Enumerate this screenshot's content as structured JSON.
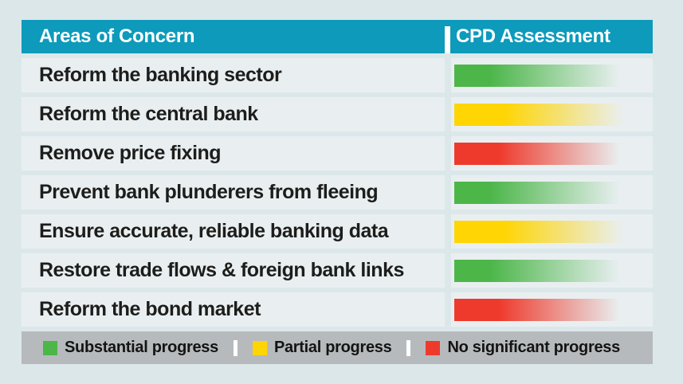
{
  "table": {
    "header": {
      "col1": "Areas of Concern",
      "col2": "CPD Assessment"
    },
    "rows": [
      {
        "label": "Reform the banking sector",
        "status": "substantial",
        "assessment": "Substantial progress"
      },
      {
        "label": "Reform the central bank",
        "status": "partial",
        "assessment": "Partial progress"
      },
      {
        "label": "Remove price fixing",
        "status": "none",
        "assessment": "No significant progress"
      },
      {
        "label": "Prevent bank plunderers from fleeing",
        "status": "substantial",
        "assessment": "Substantial progress"
      },
      {
        "label": "Ensure accurate, reliable banking data",
        "status": "partial",
        "assessment": "Partial progress"
      },
      {
        "label": "Restore trade flows & foreign bank links",
        "status": "substantial",
        "assessment": "Substantial progress"
      },
      {
        "label": "Reform the bond market",
        "status": "none",
        "assessment": "No significant progress"
      }
    ]
  },
  "legend": {
    "items": [
      {
        "label": "Substantial progress",
        "color": "#4cb649"
      },
      {
        "label": "Partial progress",
        "color": "#ffd504"
      },
      {
        "label": "No significant progress",
        "color": "#ee3a2c"
      }
    ]
  },
  "colors": {
    "header_teal": "#0d9abb",
    "row_background": "#e9eff1",
    "page_background": "#dce7ea",
    "legend_background": "#b6babc",
    "green": "#4cb649",
    "yellow": "#ffd504",
    "red": "#ee3a2c"
  },
  "chart_data": {
    "type": "table",
    "title": "",
    "columns": [
      "Areas of Concern",
      "CPD Assessment"
    ],
    "rows": [
      [
        "Reform the banking sector",
        "Substantial progress"
      ],
      [
        "Reform the central bank",
        "Partial progress"
      ],
      [
        "Remove price fixing",
        "No significant progress"
      ],
      [
        "Prevent bank plunderers from fleeing",
        "Substantial progress"
      ],
      [
        "Ensure accurate, reliable banking data",
        "Partial progress"
      ],
      [
        "Restore trade flows & foreign bank links",
        "Substantial progress"
      ],
      [
        "Reform the bond market",
        "No significant progress"
      ]
    ],
    "legend_entries": [
      "Substantial progress",
      "Partial progress",
      "No significant progress"
    ],
    "legend_position": "bottom",
    "notes": "Each assessment rendered as a left-to-right fading color bar: green=substantial, yellow=partial, red=none"
  }
}
